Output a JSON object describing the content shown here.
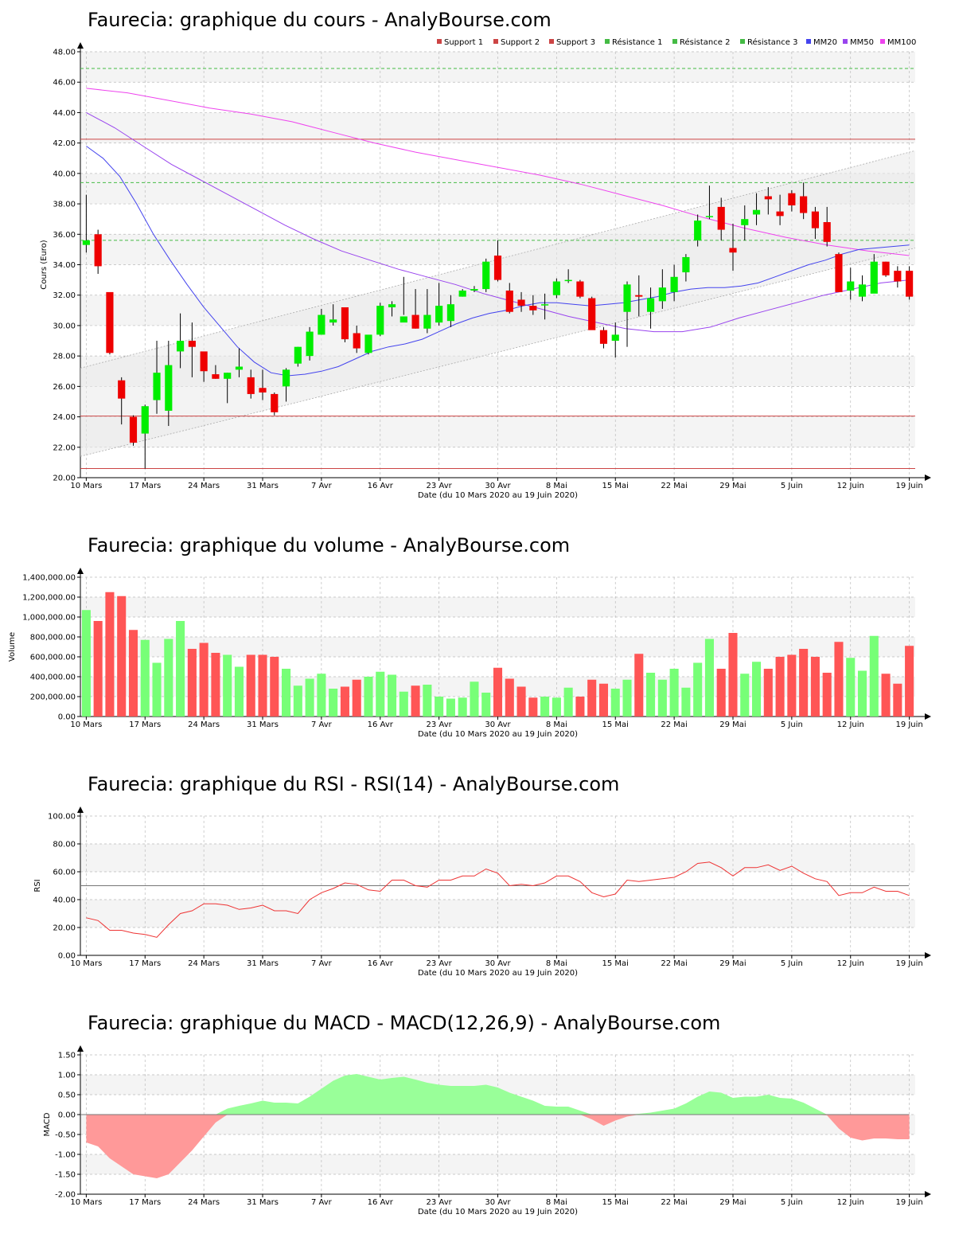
{
  "colors": {
    "up": "#00ee00",
    "down": "#ee0000",
    "vol_up": "#77ff77",
    "vol_down": "#ff5555",
    "support": "#cc4444",
    "resistance": "#44bb44",
    "mm20": "#4444ee",
    "mm50": "#9944ee",
    "mm100": "#ee44ee",
    "rsi_line": "#ee3333",
    "macd_pos": "#99ff99",
    "macd_neg": "#ff9999",
    "band": "#e6e6e6",
    "grid": "#bbbbbb"
  },
  "date_labels": [
    "10 Mars",
    "17 Mars",
    "24 Mars",
    "31 Mars",
    "7 Avr",
    "16 Avr",
    "23 Avr",
    "30 Avr",
    "8 Mai",
    "15 Mai",
    "22 Mai",
    "29 Mai",
    "5 Juin",
    "12 Juin",
    "19 Juin"
  ],
  "date_label_index": [
    0,
    5,
    10,
    15,
    20,
    25,
    30,
    35,
    40,
    45,
    50,
    55,
    60,
    65,
    70
  ],
  "chart_data": [
    {
      "type": "candlestick",
      "title": "Faurecia: graphique du cours - AnalyBourse.com",
      "xlabel": "Date (du 10 Mars 2020 au 19 Juin 2020)",
      "ylabel": "Cours (Euro)",
      "ylim": [
        20,
        48
      ],
      "yticks": [
        "20.00",
        "22.00",
        "24.00",
        "26.00",
        "28.00",
        "30.00",
        "32.00",
        "34.00",
        "36.00",
        "38.00",
        "40.00",
        "42.00",
        "44.00",
        "46.00",
        "48.00"
      ],
      "legend": [
        "Support 1",
        "Support 2",
        "Support 3",
        "Résistance 1",
        "Résistance 2",
        "Résistance 3",
        "MM20",
        "MM50",
        "MM100"
      ],
      "levels": {
        "support1": 24.05,
        "support2": 42.25,
        "support3": 20.6,
        "resistance1": 35.6,
        "resistance2": 39.4,
        "resistance3": 46.9
      },
      "candles": {
        "open": [
          35.3,
          36.0,
          32.2,
          26.4,
          24.0,
          22.9,
          25.1,
          24.4,
          28.3,
          29.0,
          28.3,
          26.8,
          26.5,
          27.1,
          26.6,
          25.9,
          25.5,
          26.0,
          27.5,
          28.0,
          29.4,
          30.2,
          31.2,
          29.5,
          28.2,
          29.4,
          31.2,
          30.2,
          30.7,
          29.8,
          30.2,
          30.3,
          31.9,
          32.3,
          32.4,
          34.6,
          32.3,
          31.7,
          31.3,
          31.4,
          32.0,
          33.0,
          32.9,
          31.8,
          29.7,
          29.0,
          30.9,
          32.0,
          30.9,
          31.6,
          32.2,
          33.5,
          35.6,
          37.2,
          37.8,
          35.1,
          36.6,
          37.3,
          38.5,
          37.5,
          38.7,
          38.5,
          37.5,
          36.8,
          34.7,
          32.3,
          31.9,
          32.1,
          34.2,
          33.6,
          33.6
        ],
        "close": [
          35.6,
          33.9,
          28.2,
          25.2,
          22.3,
          24.7,
          26.9,
          27.4,
          29.0,
          28.6,
          27.0,
          26.5,
          26.9,
          27.3,
          25.5,
          25.6,
          24.3,
          27.1,
          28.6,
          29.6,
          30.7,
          30.4,
          29.1,
          28.5,
          29.4,
          31.3,
          31.4,
          30.6,
          29.8,
          30.7,
          31.3,
          31.4,
          32.3,
          32.4,
          34.2,
          33.0,
          30.9,
          31.3,
          31.0,
          31.4,
          32.9,
          33.0,
          31.9,
          29.7,
          28.8,
          29.4,
          32.7,
          31.9,
          31.8,
          32.5,
          33.2,
          34.5,
          36.9,
          37.2,
          36.3,
          34.8,
          37.0,
          37.6,
          38.3,
          37.2,
          37.9,
          37.4,
          36.4,
          35.5,
          32.2,
          32.9,
          32.7,
          34.2,
          33.3,
          32.9,
          31.9
        ],
        "high": [
          38.6,
          36.3,
          32.1,
          26.6,
          24.1,
          24.8,
          29.0,
          29.0,
          30.8,
          30.2,
          28.2,
          27.4,
          26.9,
          28.5,
          27.1,
          27.1,
          25.6,
          27.2,
          28.6,
          29.9,
          31.1,
          31.4,
          31.2,
          30.0,
          28.2,
          31.5,
          31.6,
          33.2,
          32.4,
          32.4,
          32.8,
          32.0,
          32.4,
          32.6,
          34.4,
          35.6,
          32.8,
          32.2,
          32.0,
          32.1,
          33.1,
          33.7,
          33.0,
          31.9,
          29.9,
          30.2,
          32.9,
          33.3,
          32.5,
          33.7,
          34.0,
          34.7,
          37.3,
          39.2,
          38.4,
          36.7,
          37.9,
          38.7,
          39.1,
          38.6,
          38.9,
          39.4,
          37.8,
          37.8,
          34.8,
          33.8,
          33.3,
          34.7,
          34.2,
          33.9,
          33.9
        ],
        "low": [
          34.8,
          33.4,
          28.1,
          23.5,
          22.1,
          20.6,
          24.2,
          23.4,
          27.2,
          26.6,
          26.3,
          26.5,
          24.9,
          26.6,
          25.2,
          25.1,
          24.1,
          25.0,
          27.3,
          27.7,
          29.4,
          30.0,
          28.9,
          28.2,
          28.1,
          29.3,
          30.6,
          30.7,
          29.8,
          29.5,
          30.0,
          29.9,
          31.9,
          32.2,
          32.2,
          32.9,
          30.8,
          30.9,
          30.7,
          30.4,
          31.8,
          32.8,
          31.8,
          31.6,
          28.5,
          27.9,
          28.6,
          30.6,
          29.8,
          31.1,
          31.6,
          32.9,
          35.2,
          37.0,
          35.6,
          33.6,
          35.6,
          36.6,
          37.3,
          36.6,
          37.5,
          37.0,
          35.7,
          35.2,
          32.2,
          31.7,
          31.6,
          33.0,
          33.2,
          32.5,
          31.7
        ]
      },
      "mm20": [
        41.8,
        41.0,
        39.8,
        38.0,
        36.0,
        34.3,
        32.7,
        31.2,
        29.9,
        28.6,
        27.6,
        26.9,
        26.7,
        26.8,
        27.0,
        27.3,
        27.8,
        28.3,
        28.6,
        28.8,
        29.1,
        29.6,
        30.1,
        30.5,
        30.8,
        31.0,
        31.3,
        31.5,
        31.5,
        31.4,
        31.3,
        31.4,
        31.5,
        31.7,
        31.9,
        32.2,
        32.4,
        32.5,
        32.5,
        32.6,
        32.8,
        33.2,
        33.6,
        34.0,
        34.3,
        34.7,
        35.0,
        35.1,
        35.2,
        35.3
      ],
      "mm20_start": 0,
      "mm20_end": 70,
      "mm50": [
        44.0,
        43.0,
        41.8,
        40.6,
        39.6,
        38.6,
        37.6,
        36.6,
        35.7,
        34.9,
        34.3,
        33.7,
        33.2,
        32.7,
        32.1,
        31.6,
        31.1,
        30.6,
        30.2,
        29.8,
        29.6,
        29.6,
        29.9,
        30.5,
        31.0,
        31.5,
        32.0,
        32.4,
        32.8,
        33.0
      ],
      "mm50_start": 0,
      "mm50_end": 70,
      "mm100": [
        45.6,
        45.3,
        44.8,
        44.3,
        43.9,
        43.4,
        42.7,
        42.0,
        41.4,
        40.9,
        40.4,
        39.9,
        39.3,
        38.6,
        37.9,
        37.1,
        36.4,
        35.8,
        35.3,
        34.9,
        34.6
      ],
      "mm100_start": 0,
      "mm100_end": 70
    },
    {
      "type": "bar",
      "title": "Faurecia: graphique du volume - AnalyBourse.com",
      "xlabel": "Date (du 10 Mars 2020 au 19 Juin 2020)",
      "ylabel": "Volume",
      "ylim": [
        0,
        1400000
      ],
      "yticks": [
        "0.00",
        "200,000.00",
        "400,000.00",
        "600,000.00",
        "800,000.00",
        "1,000,000.00",
        "1,200,000.00",
        "1,400,000.00"
      ],
      "values": [
        1070000,
        960000,
        1250000,
        1210000,
        870000,
        770000,
        540000,
        780000,
        960000,
        680000,
        740000,
        640000,
        620000,
        500000,
        620000,
        620000,
        600000,
        480000,
        310000,
        380000,
        430000,
        280000,
        300000,
        370000,
        400000,
        450000,
        420000,
        250000,
        310000,
        320000,
        200000,
        180000,
        190000,
        350000,
        240000,
        490000,
        380000,
        300000,
        190000,
        200000,
        190000,
        290000,
        200000,
        370000,
        330000,
        280000,
        370000,
        630000,
        440000,
        370000,
        480000,
        290000,
        540000,
        780000,
        480000,
        840000,
        430000,
        550000,
        480000,
        600000,
        620000,
        680000,
        600000,
        440000,
        750000,
        590000,
        460000,
        810000,
        430000,
        330000,
        710000
      ]
    },
    {
      "type": "line",
      "title": "Faurecia: graphique du RSI - RSI(14) - AnalyBourse.com",
      "xlabel": "Date (du 10 Mars 2020 au 19 Juin 2020)",
      "ylabel": "RSI",
      "ylim": [
        0,
        100
      ],
      "yticks": [
        "0.00",
        "20.00",
        "40.00",
        "60.00",
        "80.00",
        "100.00"
      ],
      "reference": 50,
      "values": [
        27,
        25,
        18,
        18,
        16,
        15,
        13,
        22,
        30,
        32,
        37,
        37,
        36,
        33,
        34,
        36,
        32,
        32,
        30,
        40,
        45,
        48,
        52,
        51,
        47,
        46,
        54,
        54,
        50,
        49,
        54,
        54,
        57,
        57,
        62,
        59,
        50,
        51,
        50,
        52,
        57,
        57,
        53,
        45,
        42,
        44,
        54,
        53,
        54,
        55,
        56,
        60,
        66,
        67,
        63,
        57,
        63,
        63,
        65,
        61,
        64,
        59,
        55,
        53,
        43,
        45,
        45,
        49,
        46,
        46,
        43
      ]
    },
    {
      "type": "area",
      "title": "Faurecia: graphique du MACD - MACD(12,26,9) - AnalyBourse.com",
      "xlabel": "Date (du 10 Mars 2020 au 19 Juin 2020)",
      "ylabel": "MACD",
      "ylim": [
        -2,
        1.5
      ],
      "yticks": [
        "-2.00",
        "-1.50",
        "-1.00",
        "-0.50",
        "0.00",
        "0.50",
        "1.00",
        "1.50"
      ],
      "values": [
        -0.7,
        -0.8,
        -1.1,
        -1.3,
        -1.5,
        -1.55,
        -1.6,
        -1.5,
        -1.2,
        -0.9,
        -0.55,
        -0.2,
        0.15,
        0.22,
        0.28,
        0.35,
        0.3,
        0.3,
        0.28,
        0.45,
        0.65,
        0.85,
        0.98,
        1.02,
        0.95,
        0.88,
        0.92,
        0.95,
        0.88,
        0.8,
        0.75,
        0.72,
        0.72,
        0.72,
        0.75,
        0.68,
        0.55,
        0.45,
        0.35,
        0.22,
        0.2,
        0.2,
        0.1,
        -0.12,
        -0.28,
        -0.15,
        -0.05,
        0.02,
        0.05,
        0.1,
        0.15,
        0.28,
        0.45,
        0.58,
        0.55,
        0.42,
        0.45,
        0.45,
        0.5,
        0.42,
        0.4,
        0.3,
        0.15,
        -0.02,
        -0.35,
        -0.58,
        -0.65,
        -0.6,
        -0.6,
        -0.62,
        -0.62
      ]
    }
  ]
}
